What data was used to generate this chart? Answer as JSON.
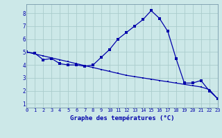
{
  "title": "Graphe des températures (°C)",
  "background_color": "#cce8e8",
  "grid_color": "#aacccc",
  "line_color": "#0000aa",
  "hours": [
    0,
    1,
    2,
    3,
    4,
    5,
    6,
    7,
    8,
    9,
    10,
    11,
    12,
    13,
    14,
    15,
    16,
    17,
    18,
    19,
    20,
    21,
    22,
    23
  ],
  "temp_curve": [
    5.0,
    4.9,
    4.4,
    4.5,
    4.1,
    4.0,
    4.0,
    3.9,
    4.0,
    4.6,
    5.2,
    6.0,
    6.5,
    7.0,
    7.5,
    8.2,
    7.6,
    6.6,
    4.5,
    2.6,
    2.6,
    2.8,
    2.0,
    1.4
  ],
  "trend_line": [
    5.0,
    4.85,
    4.7,
    4.55,
    4.4,
    4.25,
    4.1,
    3.95,
    3.8,
    3.65,
    3.5,
    3.35,
    3.2,
    3.1,
    3.0,
    2.9,
    2.8,
    2.7,
    2.6,
    2.5,
    2.4,
    2.3,
    2.1,
    1.4
  ],
  "ylim": [
    0.7,
    8.7
  ],
  "yticks": [
    1,
    2,
    3,
    4,
    5,
    6,
    7,
    8
  ],
  "xlim": [
    0,
    23
  ],
  "xticks": [
    0,
    1,
    2,
    3,
    4,
    5,
    6,
    7,
    8,
    9,
    10,
    11,
    12,
    13,
    14,
    15,
    16,
    17,
    18,
    19,
    20,
    21,
    22,
    23
  ]
}
